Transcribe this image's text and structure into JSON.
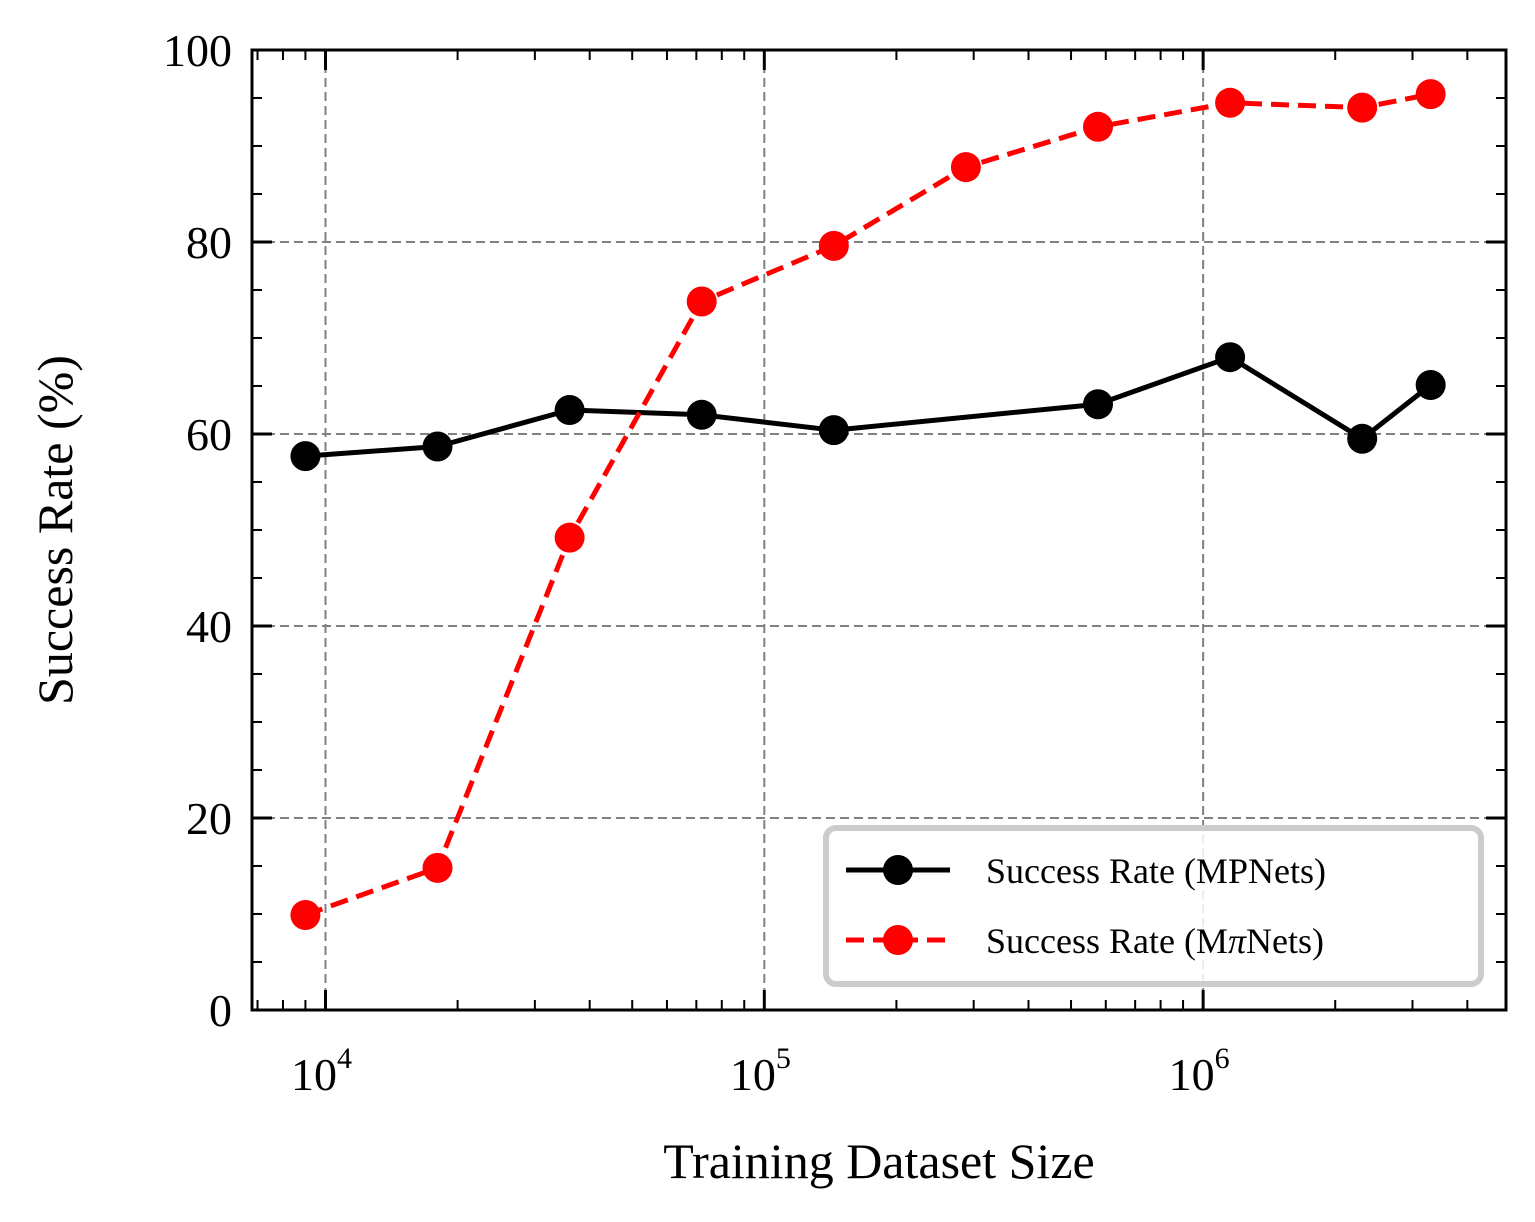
{
  "chart_data": {
    "type": "line",
    "xscale": "log",
    "xlabel": "Training Dataset Size",
    "ylabel": "Success Rate (%)",
    "xlim": [
      6800,
      4900000
    ],
    "ylim": [
      0,
      100
    ],
    "xticks": [
      {
        "value": 10000,
        "base": "10",
        "exp": "4"
      },
      {
        "value": 100000,
        "base": "10",
        "exp": "5"
      },
      {
        "value": 1000000,
        "base": "10",
        "exp": "6"
      }
    ],
    "yticks": [
      {
        "value": 0,
        "label": "0"
      },
      {
        "value": 20,
        "label": "20"
      },
      {
        "value": 40,
        "label": "40"
      },
      {
        "value": 60,
        "label": "60"
      },
      {
        "value": 80,
        "label": "80"
      },
      {
        "value": 100,
        "label": "100"
      }
    ],
    "grid": true,
    "legend_position": "bottom-right",
    "series": [
      {
        "name": "Success Rate (MPNets)",
        "legend_prefix": "Success Rate (M",
        "legend_italic": "",
        "legend_suffix": "PNets)",
        "color": "#000000",
        "dash": "solid",
        "x": [
          9000,
          18000,
          36000,
          72000,
          144000,
          576000,
          1152000,
          2304000,
          3300000
        ],
        "y": [
          57.7,
          58.7,
          62.5,
          62.0,
          60.4,
          63.1,
          68.0,
          59.5,
          65.1
        ]
      },
      {
        "name": "Success Rate (MπNets)",
        "legend_prefix": "Success Rate (M",
        "legend_italic": "π",
        "legend_suffix": "Nets)",
        "color": "#ff0000",
        "dash": "dashed",
        "x": [
          9000,
          18000,
          36000,
          72000,
          144000,
          288000,
          576000,
          1152000,
          2304000,
          3300000
        ],
        "y": [
          9.9,
          14.8,
          49.2,
          73.8,
          79.6,
          87.8,
          92.0,
          94.5,
          94.0,
          95.4
        ]
      }
    ]
  }
}
